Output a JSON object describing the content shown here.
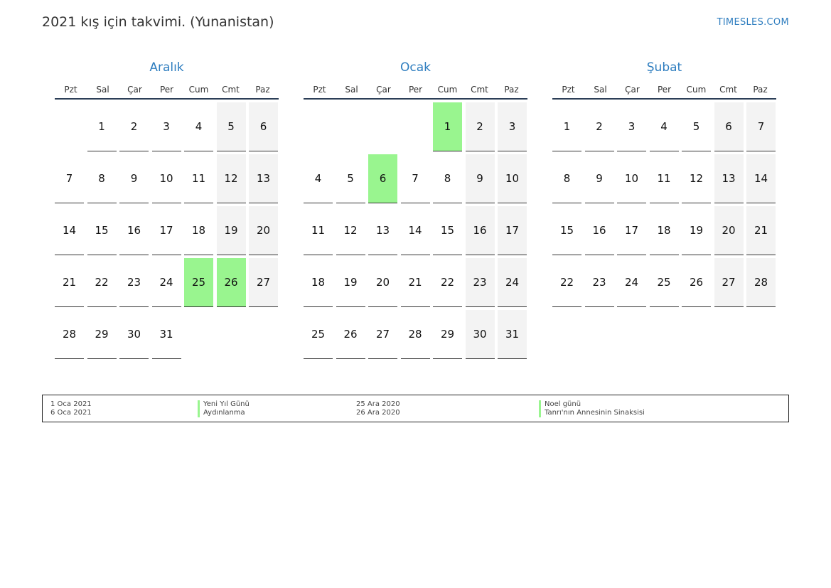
{
  "header": {
    "title": "2021 kış için takvimi. (Yunanistan)",
    "site": "TIMESLES.COM"
  },
  "colors": {
    "accent": "#2e7dbf",
    "holiday": "#99f58f",
    "weekend": "#f3f3f3"
  },
  "weekdays": [
    "Pzt",
    "Sal",
    "Çar",
    "Per",
    "Cum",
    "Cmt",
    "Paz"
  ],
  "months": [
    {
      "name": "Aralık",
      "cells": [
        {
          "d": "",
          "t": "empty"
        },
        {
          "d": "1",
          "t": ""
        },
        {
          "d": "2",
          "t": ""
        },
        {
          "d": "3",
          "t": ""
        },
        {
          "d": "4",
          "t": ""
        },
        {
          "d": "5",
          "t": "weekend"
        },
        {
          "d": "6",
          "t": "weekend"
        },
        {
          "d": "7",
          "t": ""
        },
        {
          "d": "8",
          "t": ""
        },
        {
          "d": "9",
          "t": ""
        },
        {
          "d": "10",
          "t": ""
        },
        {
          "d": "11",
          "t": ""
        },
        {
          "d": "12",
          "t": "weekend"
        },
        {
          "d": "13",
          "t": "weekend"
        },
        {
          "d": "14",
          "t": ""
        },
        {
          "d": "15",
          "t": ""
        },
        {
          "d": "16",
          "t": ""
        },
        {
          "d": "17",
          "t": ""
        },
        {
          "d": "18",
          "t": ""
        },
        {
          "d": "19",
          "t": "weekend"
        },
        {
          "d": "20",
          "t": "weekend"
        },
        {
          "d": "21",
          "t": ""
        },
        {
          "d": "22",
          "t": ""
        },
        {
          "d": "23",
          "t": ""
        },
        {
          "d": "24",
          "t": ""
        },
        {
          "d": "25",
          "t": "holiday"
        },
        {
          "d": "26",
          "t": "holiday"
        },
        {
          "d": "27",
          "t": "weekend"
        },
        {
          "d": "28",
          "t": ""
        },
        {
          "d": "29",
          "t": ""
        },
        {
          "d": "30",
          "t": ""
        },
        {
          "d": "31",
          "t": ""
        }
      ]
    },
    {
      "name": "Ocak",
      "cells": [
        {
          "d": "",
          "t": "empty"
        },
        {
          "d": "",
          "t": "empty"
        },
        {
          "d": "",
          "t": "empty"
        },
        {
          "d": "",
          "t": "empty"
        },
        {
          "d": "1",
          "t": "holiday"
        },
        {
          "d": "2",
          "t": "weekend"
        },
        {
          "d": "3",
          "t": "weekend"
        },
        {
          "d": "4",
          "t": ""
        },
        {
          "d": "5",
          "t": ""
        },
        {
          "d": "6",
          "t": "holiday"
        },
        {
          "d": "7",
          "t": ""
        },
        {
          "d": "8",
          "t": ""
        },
        {
          "d": "9",
          "t": "weekend"
        },
        {
          "d": "10",
          "t": "weekend"
        },
        {
          "d": "11",
          "t": ""
        },
        {
          "d": "12",
          "t": ""
        },
        {
          "d": "13",
          "t": ""
        },
        {
          "d": "14",
          "t": ""
        },
        {
          "d": "15",
          "t": ""
        },
        {
          "d": "16",
          "t": "weekend"
        },
        {
          "d": "17",
          "t": "weekend"
        },
        {
          "d": "18",
          "t": ""
        },
        {
          "d": "19",
          "t": ""
        },
        {
          "d": "20",
          "t": ""
        },
        {
          "d": "21",
          "t": ""
        },
        {
          "d": "22",
          "t": ""
        },
        {
          "d": "23",
          "t": "weekend"
        },
        {
          "d": "24",
          "t": "weekend"
        },
        {
          "d": "25",
          "t": ""
        },
        {
          "d": "26",
          "t": ""
        },
        {
          "d": "27",
          "t": ""
        },
        {
          "d": "28",
          "t": ""
        },
        {
          "d": "29",
          "t": ""
        },
        {
          "d": "30",
          "t": "weekend"
        },
        {
          "d": "31",
          "t": "weekend"
        }
      ]
    },
    {
      "name": "Şubat",
      "cells": [
        {
          "d": "1",
          "t": ""
        },
        {
          "d": "2",
          "t": ""
        },
        {
          "d": "3",
          "t": ""
        },
        {
          "d": "4",
          "t": ""
        },
        {
          "d": "5",
          "t": ""
        },
        {
          "d": "6",
          "t": "weekend"
        },
        {
          "d": "7",
          "t": "weekend"
        },
        {
          "d": "8",
          "t": ""
        },
        {
          "d": "9",
          "t": ""
        },
        {
          "d": "10",
          "t": ""
        },
        {
          "d": "11",
          "t": ""
        },
        {
          "d": "12",
          "t": ""
        },
        {
          "d": "13",
          "t": "weekend"
        },
        {
          "d": "14",
          "t": "weekend"
        },
        {
          "d": "15",
          "t": ""
        },
        {
          "d": "16",
          "t": ""
        },
        {
          "d": "17",
          "t": ""
        },
        {
          "d": "18",
          "t": ""
        },
        {
          "d": "19",
          "t": ""
        },
        {
          "d": "20",
          "t": "weekend"
        },
        {
          "d": "21",
          "t": "weekend"
        },
        {
          "d": "22",
          "t": ""
        },
        {
          "d": "23",
          "t": ""
        },
        {
          "d": "24",
          "t": ""
        },
        {
          "d": "25",
          "t": ""
        },
        {
          "d": "26",
          "t": ""
        },
        {
          "d": "27",
          "t": "weekend"
        },
        {
          "d": "28",
          "t": "weekend"
        }
      ]
    }
  ],
  "holidays": [
    {
      "date": "1 Oca 2021",
      "name": "Yeni Yıl Günü"
    },
    {
      "date": "6 Oca 2021",
      "name": "Aydınlanma"
    },
    {
      "date": "25 Ara 2020",
      "name": "Noel günü"
    },
    {
      "date": "26 Ara 2020",
      "name": "Tanrı'nın Annesinin Sinaksisi"
    }
  ]
}
